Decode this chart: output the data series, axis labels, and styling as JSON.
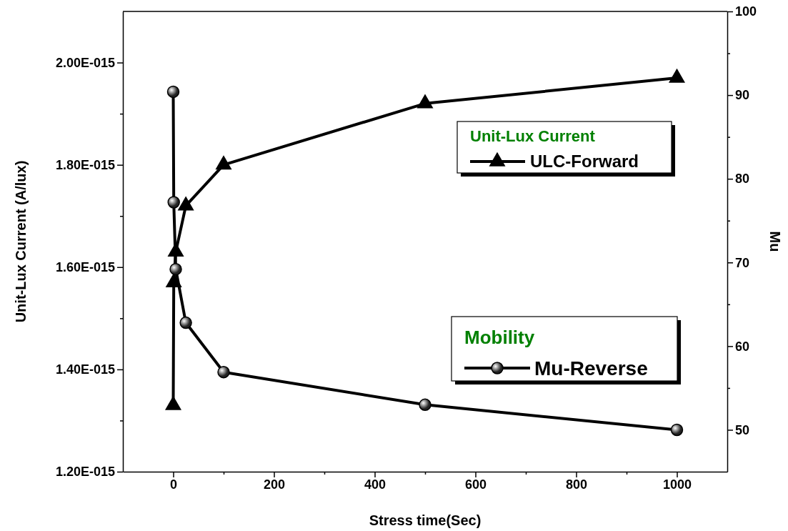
{
  "chart_data": {
    "type": "line",
    "xlabel": "Stress time(Sec)",
    "ylabel": "Unit-Lux Current (A/lux)",
    "y2label": "Mu",
    "xlim": [
      -100,
      1100
    ],
    "xticks": [
      0,
      {
        "value": 100,
        "label": null
      },
      200,
      {
        "value": 300,
        "label": null
      },
      400,
      {
        "value": 500,
        "label": null
      },
      600,
      {
        "value": 700,
        "label": null
      },
      800,
      {
        "value": 900,
        "label": null
      },
      1000
    ],
    "ylim": [
      1.2e-15,
      2.1e-15
    ],
    "yticks": [
      {
        "value": 1.2e-15,
        "label": "1.20E-015"
      },
      {
        "value": 1.3e-15,
        "label": null
      },
      {
        "value": 1.4e-15,
        "label": "1.40E-015"
      },
      {
        "value": 1.5e-15,
        "label": null
      },
      {
        "value": 1.6e-15,
        "label": "1.60E-015"
      },
      {
        "value": 1.7e-15,
        "label": null
      },
      {
        "value": 1.8e-15,
        "label": "1.80E-015"
      },
      {
        "value": 1.9e-15,
        "label": null
      },
      {
        "value": 2e-15,
        "label": "2.00E-015"
      }
    ],
    "y2lim": [
      45,
      100
    ],
    "y2ticks": [
      50,
      {
        "value": 55,
        "label": null
      },
      60,
      {
        "value": 65,
        "label": null
      },
      70,
      {
        "value": 75,
        "label": null
      },
      80,
      {
        "value": 85,
        "label": null
      },
      90,
      {
        "value": 95,
        "label": null
      },
      100
    ],
    "x": [
      0,
      1,
      5,
      25,
      100,
      500,
      1000
    ],
    "series": [
      {
        "name": "ULC-Forward",
        "color": "#000000",
        "marker": "triangle",
        "values": [
          1.33e-15,
          1.57e-15,
          1.63e-15,
          1.72e-15,
          1.8e-15,
          1.92e-15,
          1.97e-15
        ]
      },
      {
        "name": "Mu-Reverse",
        "color": "#000000",
        "marker": "circle",
        "axis": "y2",
        "values": [
          90.4,
          77.2,
          69.2,
          62.8,
          56.9,
          53.0,
          50.0
        ]
      }
    ],
    "annotations": [
      "Unit-Lux Current",
      "Mobility"
    ],
    "legend": "right",
    "grid": false
  }
}
